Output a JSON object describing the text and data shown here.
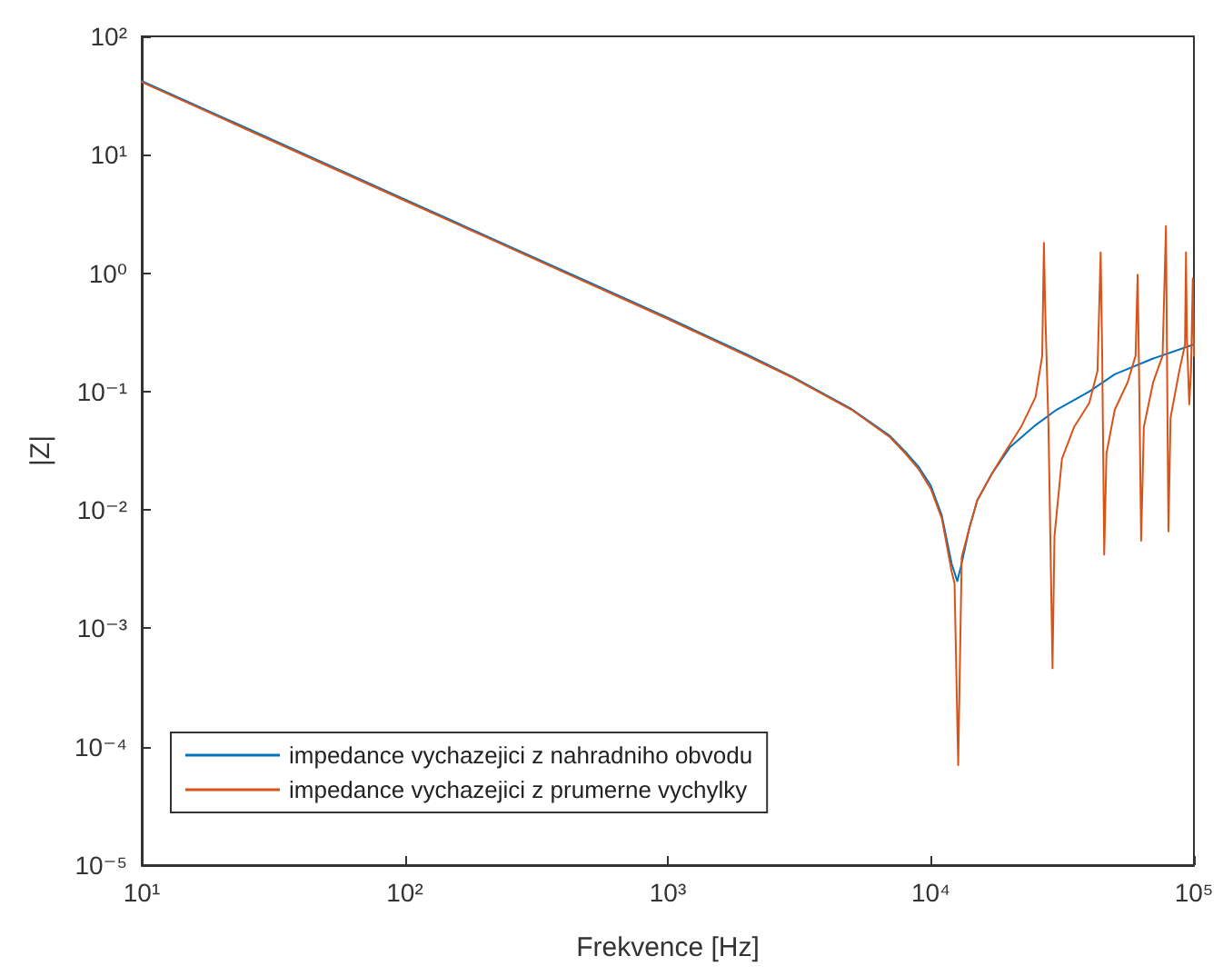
{
  "chart_data": {
    "type": "line",
    "xlabel": "Frekvence [Hz]",
    "ylabel": "|Z|",
    "log": "xy",
    "grid": false,
    "legend": "bottom left",
    "marker": "none",
    "line_style": "solid",
    "xlim": [
      10,
      100000
    ],
    "xticks": [
      {
        "value": 10,
        "label": "10¹"
      },
      {
        "value": 100,
        "label": "10²"
      },
      {
        "value": 1000,
        "label": "10³"
      },
      {
        "value": 10000,
        "label": "10⁴"
      },
      {
        "value": 100000,
        "label": "10⁵"
      }
    ],
    "ylim": [
      1e-05,
      100
    ],
    "yticks": [
      {
        "value": 1e-05,
        "label": "10⁻⁵"
      },
      {
        "value": 0.0001,
        "label": "10⁻⁴"
      },
      {
        "value": 0.001,
        "label": "10⁻³"
      },
      {
        "value": 0.01,
        "label": "10⁻²"
      },
      {
        "value": 0.1,
        "label": "10⁻¹"
      },
      {
        "value": 1,
        "label": "10⁰"
      },
      {
        "value": 10,
        "label": "10¹"
      },
      {
        "value": 100,
        "label": "10²"
      }
    ],
    "series": [
      {
        "name": "impedance vychazejici z nahradniho obvodu",
        "color": "#0072bd",
        "x": [
          10,
          20,
          50,
          100,
          200,
          500,
          1000,
          2000,
          3000,
          5000,
          7000,
          8000,
          9000,
          10000,
          11000,
          12000,
          12600,
          13000,
          14000,
          15000,
          17000,
          20000,
          25000,
          30000,
          40000,
          50000,
          70000,
          100000
        ],
        "values": [
          42,
          21,
          8.4,
          4.2,
          2.1,
          0.84,
          0.42,
          0.205,
          0.132,
          0.071,
          0.042,
          0.031,
          0.023,
          0.016,
          0.009,
          0.0035,
          0.0025,
          0.0033,
          0.007,
          0.012,
          0.02,
          0.034,
          0.052,
          0.07,
          0.1,
          0.14,
          0.19,
          0.25
        ]
      },
      {
        "name": "impedance vychazejici z prumerne vychylky",
        "color": "#d95319",
        "x": [
          10,
          20,
          50,
          100,
          200,
          500,
          1000,
          2000,
          3000,
          5000,
          7000,
          8000,
          9000,
          10000,
          11000,
          12000,
          12300,
          12700,
          13100,
          14000,
          15000,
          17000,
          19000,
          22000,
          25000,
          26500,
          26900,
          27200,
          28000,
          29000,
          29500,
          31500,
          35000,
          40000,
          43000,
          44200,
          44800,
          45600,
          46500,
          50000,
          56000,
          60000,
          61100,
          62000,
          63000,
          64500,
          70000,
          76000,
          78300,
          79000,
          80000,
          81500,
          88000,
          92500,
          93300,
          94000,
          96000,
          97500,
          99000,
          100000
        ],
        "values": [
          41,
          20.5,
          8.2,
          4.1,
          2.05,
          0.82,
          0.41,
          0.2,
          0.13,
          0.07,
          0.041,
          0.03,
          0.022,
          0.015,
          0.0085,
          0.003,
          0.0024,
          7e-05,
          0.004,
          0.007,
          0.012,
          0.02,
          0.03,
          0.05,
          0.09,
          0.2,
          1.8,
          0.5,
          0.05,
          0.00046,
          0.006,
          0.027,
          0.05,
          0.08,
          0.15,
          1.5,
          0.2,
          0.0042,
          0.03,
          0.07,
          0.12,
          0.2,
          0.97,
          0.1,
          0.0055,
          0.05,
          0.12,
          0.2,
          2.5,
          0.2,
          0.0066,
          0.06,
          0.15,
          0.25,
          1.5,
          0.3,
          0.078,
          0.15,
          0.9,
          0.2
        ]
      }
    ]
  }
}
